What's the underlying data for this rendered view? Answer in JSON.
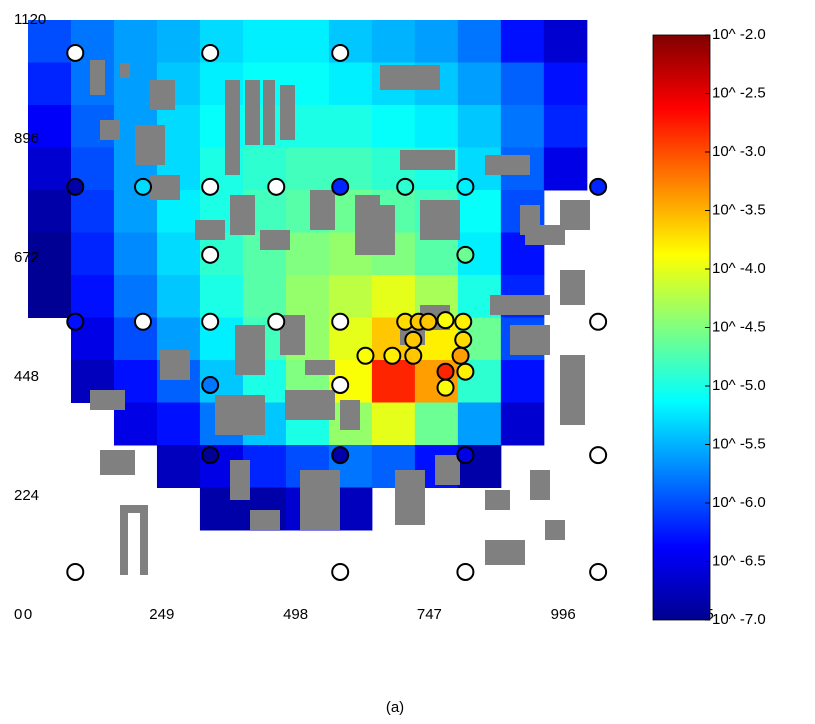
{
  "chart_data": {
    "type": "heatmap",
    "caption": "(a)",
    "xlim": [
      0,
      1245
    ],
    "ylim": [
      0,
      1120
    ],
    "xticks": [
      0,
      249,
      498,
      747,
      996,
      1245
    ],
    "yticks": [
      0,
      224,
      448,
      672,
      896,
      1120
    ],
    "colormap": "jet",
    "clim": [
      -7,
      -2
    ],
    "cticks": [
      {
        "value": -2.0,
        "label": "10^ -2.0"
      },
      {
        "value": -2.5,
        "label": "10^ -2.5"
      },
      {
        "value": -3.0,
        "label": "10^ -3.0"
      },
      {
        "value": -3.5,
        "label": "10^ -3.5"
      },
      {
        "value": -4.0,
        "label": "10^ -4.0"
      },
      {
        "value": -4.5,
        "label": "10^ -4.5"
      },
      {
        "value": -5.0,
        "label": "10^ -5.0"
      },
      {
        "value": -5.5,
        "label": "10^ -5.5"
      },
      {
        "value": -6.0,
        "label": "10^ -6.0"
      },
      {
        "value": -6.5,
        "label": "10^ -6.5"
      },
      {
        "value": -7.0,
        "label": "10^ -7.0"
      }
    ],
    "xbins": [
      0,
      80,
      160,
      240,
      320,
      400,
      480,
      560,
      640,
      720,
      800,
      880,
      960,
      1040,
      1120
    ],
    "ybins": [
      1120,
      1040,
      960,
      880,
      800,
      720,
      640,
      560,
      480,
      400,
      320,
      240,
      160
    ],
    "values": [
      [
        -6.0,
        -5.8,
        -5.6,
        -5.5,
        -5.3,
        -5.2,
        -5.2,
        -5.4,
        -5.5,
        -5.6,
        -5.8,
        -6.3,
        -6.6,
        null
      ],
      [
        -6.2,
        -5.8,
        -5.6,
        -5.4,
        -5.2,
        -5.1,
        -5.1,
        -5.2,
        -5.3,
        -5.4,
        -5.6,
        -5.9,
        -6.3,
        null
      ],
      [
        -6.4,
        -5.9,
        -5.6,
        -5.3,
        -5.1,
        -5.0,
        -5.0,
        -5.0,
        -5.1,
        -5.2,
        -5.4,
        -5.8,
        -6.2,
        null
      ],
      [
        -6.6,
        -6.0,
        -5.6,
        -5.3,
        -5.0,
        -4.9,
        -4.8,
        -4.8,
        -4.9,
        -5.0,
        -5.3,
        -5.9,
        -6.5,
        null
      ],
      [
        -6.8,
        -6.1,
        -5.6,
        -5.2,
        -5.0,
        -4.8,
        -4.7,
        -4.6,
        -4.7,
        -4.8,
        -5.1,
        -6.0,
        null,
        null
      ],
      [
        -6.9,
        -6.2,
        -5.7,
        -5.3,
        -4.9,
        -4.7,
        -4.5,
        -4.4,
        -4.5,
        -4.7,
        -5.2,
        -6.3,
        null,
        null
      ],
      [
        -6.9,
        -6.3,
        -5.8,
        -5.4,
        -5.0,
        -4.7,
        -4.4,
        -4.2,
        -4.0,
        -4.3,
        -5.0,
        -6.2,
        null,
        null
      ],
      [
        null,
        -6.5,
        -6.0,
        -5.6,
        -5.2,
        -4.8,
        -4.4,
        -4.0,
        -3.6,
        -3.8,
        -4.6,
        -6.0,
        null,
        null
      ],
      [
        null,
        -6.7,
        -6.3,
        -5.9,
        -5.4,
        -5.0,
        -4.5,
        -3.9,
        -2.8,
        -3.4,
        -4.9,
        -6.3,
        null,
        null
      ],
      [
        null,
        null,
        -6.5,
        -6.3,
        -5.8,
        -5.4,
        -5.0,
        -4.4,
        -4.0,
        -4.6,
        -5.6,
        -6.6,
        null,
        null
      ],
      [
        null,
        null,
        null,
        -6.7,
        -6.5,
        -6.2,
        -6.0,
        -5.8,
        -5.9,
        -6.3,
        -6.8,
        null,
        null,
        null
      ],
      [
        null,
        null,
        null,
        null,
        -6.8,
        -6.8,
        -6.6,
        -6.7,
        null,
        null,
        null,
        null,
        null,
        null
      ]
    ],
    "sensors": {
      "x": [
        88,
        339,
        581,
        88,
        214,
        339,
        462,
        581,
        702,
        814,
        1061,
        339,
        814,
        88,
        214,
        339,
        462,
        581,
        1061,
        702,
        727,
        745,
        777,
        810,
        717,
        810,
        628,
        678,
        717,
        805,
        777,
        814,
        777,
        339,
        581,
        339,
        581,
        814,
        1061,
        88,
        581,
        814,
        1061
      ],
      "y": [
        1058,
        1058,
        1058,
        806,
        806,
        806,
        806,
        806,
        806,
        806,
        806,
        678,
        678,
        552,
        552,
        552,
        552,
        552,
        552,
        552,
        552,
        552,
        555,
        552,
        518,
        518,
        488,
        488,
        488,
        488,
        458,
        458,
        428,
        433,
        433,
        301,
        301,
        301,
        301,
        81,
        81,
        81,
        81
      ],
      "values": [
        null,
        null,
        null,
        -6.8,
        -5.3,
        null,
        null,
        -6.2,
        -4.9,
        -5.2,
        -6.2,
        null,
        -4.6,
        -6.3,
        null,
        null,
        null,
        null,
        null,
        -3.7,
        -3.6,
        -3.6,
        -3.9,
        -3.8,
        -3.6,
        -3.7,
        -3.9,
        -3.8,
        -3.6,
        -3.4,
        -2.8,
        -3.8,
        -3.9,
        -5.8,
        null,
        -6.9,
        -6.8,
        -6.5,
        null,
        null,
        null,
        null,
        null
      ]
    }
  }
}
